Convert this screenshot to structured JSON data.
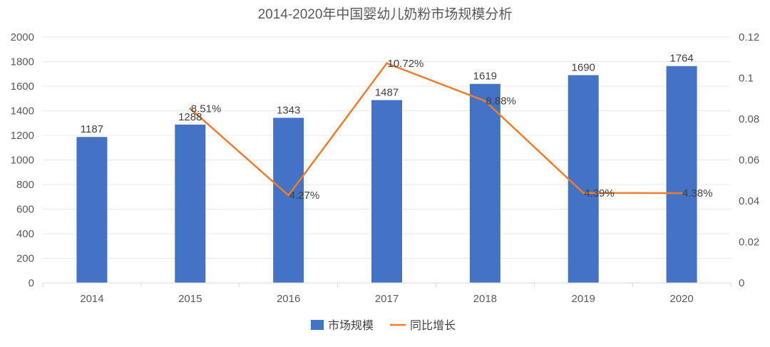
{
  "chart_data": {
    "type": "bar",
    "title": "2014-2020年中国婴幼儿奶粉市场规模分析",
    "categories": [
      "2014",
      "2015",
      "2016",
      "2017",
      "2018",
      "2019",
      "2020"
    ],
    "series": [
      {
        "name": "市场规模",
        "type": "bar",
        "axis": "left",
        "color": "#4472C4",
        "values": [
          1187,
          1288,
          1343,
          1487,
          1619,
          1690,
          1764
        ],
        "labels": [
          "1187",
          "1288",
          "1343",
          "1487",
          "1619",
          "1690",
          "1764"
        ]
      },
      {
        "name": "同比增长",
        "type": "line",
        "axis": "right",
        "color": "#ED7D31",
        "values": [
          null,
          0.0851,
          0.0427,
          0.1072,
          0.0888,
          0.0439,
          0.0438
        ],
        "labels": [
          "",
          "8.51%",
          "4.27%",
          "10.72%",
          "8.88%",
          "4.39%",
          "4.38%"
        ]
      }
    ],
    "y_left": {
      "min": 0,
      "max": 2000,
      "ticks": [
        "0",
        "200",
        "400",
        "600",
        "800",
        "1000",
        "1200",
        "1400",
        "1600",
        "1800",
        "2000"
      ]
    },
    "y_right": {
      "min": 0,
      "max": 0.12,
      "ticks": [
        "0",
        "0.02",
        "0.04",
        "0.06",
        "0.08",
        "0.1",
        "0.12"
      ]
    },
    "grid": true,
    "legend_position": "bottom"
  }
}
